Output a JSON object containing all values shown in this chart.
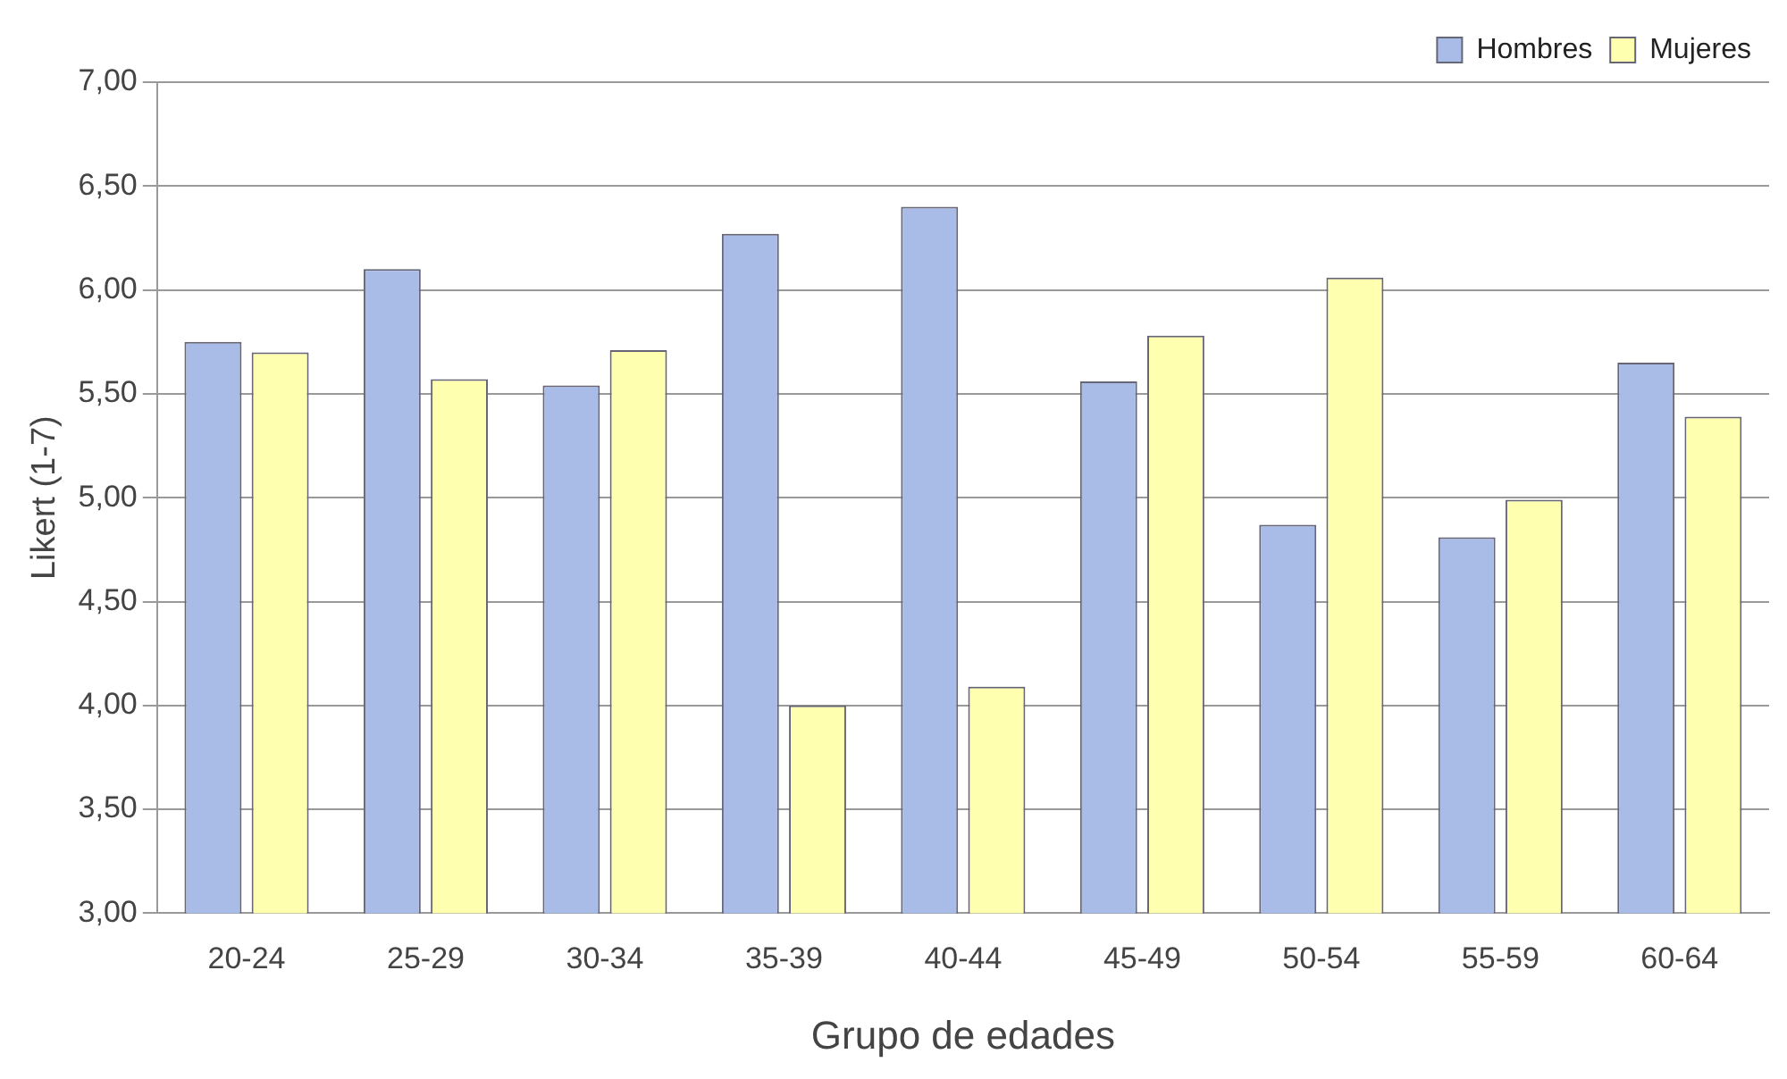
{
  "chart_data": {
    "type": "bar",
    "xlabel": "Grupo de edades",
    "ylabel": "Likert (1-7)",
    "categories": [
      "20-24",
      "25-29",
      "30-34",
      "35-39",
      "40-44",
      "45-49",
      "50-54",
      "55-59",
      "60-64"
    ],
    "series": [
      {
        "name": "Hombres",
        "color": "#a9bce8",
        "values": [
          5.75,
          6.1,
          5.54,
          6.27,
          6.4,
          5.56,
          4.87,
          4.81,
          5.65
        ]
      },
      {
        "name": "Mujeres",
        "color": "#ffffb0",
        "values": [
          5.7,
          5.57,
          5.71,
          4.0,
          4.09,
          5.78,
          6.06,
          4.99,
          5.39
        ]
      }
    ],
    "ylim": [
      3,
      7
    ],
    "yticks": [
      {
        "value": 3,
        "label": "3,00"
      },
      {
        "value": 3.5,
        "label": "3,50"
      },
      {
        "value": 4,
        "label": "4,00"
      },
      {
        "value": 4.5,
        "label": "4,50"
      },
      {
        "value": 5,
        "label": "5,00"
      },
      {
        "value": 5.5,
        "label": "5,50"
      },
      {
        "value": 6,
        "label": "6,00"
      },
      {
        "value": 6.5,
        "label": "6,50"
      },
      {
        "value": 7,
        "label": "7,00"
      }
    ],
    "grid": "y",
    "legend": "top right"
  }
}
